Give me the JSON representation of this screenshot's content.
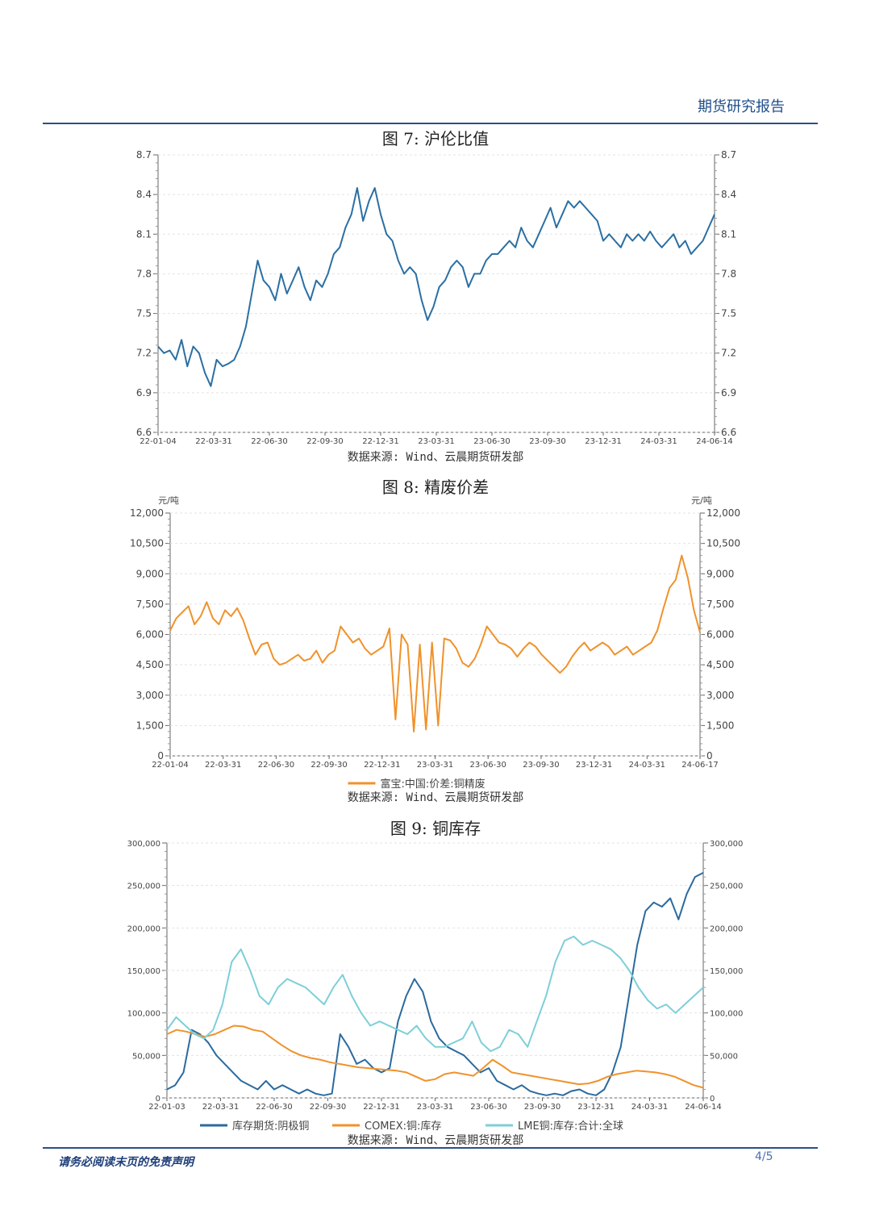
{
  "header": {
    "title": "期货研究报告"
  },
  "footer": {
    "disclaimer": "请务必阅读末页的免责声明",
    "page": "4/5"
  },
  "colors": {
    "blue": "#2a6fa3",
    "orange": "#f0922b",
    "cyan": "#7dcfd7",
    "dark_blue": "#2b6a9e",
    "rule": "#2b4f86"
  },
  "figures": [
    {
      "title": "图 7: 沪伦比值",
      "source": "数据来源: Wind、云晨期货研发部"
    },
    {
      "title": "图 8: 精废价差",
      "source": "数据来源: Wind、云晨期货研发部"
    },
    {
      "title": "图 9: 铜库存",
      "source": "数据来源: Wind、云晨期货研发部"
    }
  ],
  "chart_data": [
    {
      "type": "line",
      "title": "图 7: 沪伦比值",
      "x_ticks": [
        "22-01-04",
        "22-03-31",
        "22-06-30",
        "22-09-30",
        "22-12-31",
        "23-03-31",
        "23-06-30",
        "23-09-30",
        "23-12-31",
        "24-03-31",
        "24-06-14"
      ],
      "y_ticks": [
        "6.6",
        "6.9",
        "7.2",
        "7.5",
        "7.8",
        "8.1",
        "8.4",
        "8.7"
      ],
      "ylim": [
        6.6,
        8.7
      ],
      "grid": true,
      "series": [
        {
          "color": "#2a6fa3",
          "values": [
            7.25,
            7.2,
            7.22,
            7.15,
            7.3,
            7.1,
            7.25,
            7.2,
            7.05,
            6.95,
            7.15,
            7.1,
            7.12,
            7.15,
            7.25,
            7.4,
            7.65,
            7.9,
            7.75,
            7.7,
            7.6,
            7.8,
            7.65,
            7.75,
            7.85,
            7.7,
            7.6,
            7.75,
            7.7,
            7.8,
            7.95,
            8.0,
            8.15,
            8.25,
            8.45,
            8.2,
            8.35,
            8.45,
            8.25,
            8.1,
            8.05,
            7.9,
            7.8,
            7.85,
            7.8,
            7.6,
            7.45,
            7.55,
            7.7,
            7.75,
            7.85,
            7.9,
            7.85,
            7.7,
            7.8,
            7.8,
            7.9,
            7.95,
            7.95,
            8.0,
            8.05,
            8.0,
            8.15,
            8.05,
            8.0,
            8.1,
            8.2,
            8.3,
            8.15,
            8.25,
            8.35,
            8.3,
            8.35,
            8.3,
            8.25,
            8.2,
            8.05,
            8.1,
            8.05,
            8.0,
            8.1,
            8.05,
            8.1,
            8.05,
            8.12,
            8.05,
            8.0,
            8.05,
            8.1,
            8.0,
            8.05,
            7.95,
            8.0,
            8.05,
            8.15,
            8.25
          ]
        }
      ]
    },
    {
      "type": "line",
      "title": "图 8: 精废价差",
      "ylabel": "元/吨",
      "x_ticks": [
        "22-01-04",
        "22-03-31",
        "22-06-30",
        "22-09-30",
        "22-12-31",
        "23-03-31",
        "23-06-30",
        "23-09-30",
        "23-12-31",
        "24-03-31",
        "24-06-17"
      ],
      "y_ticks": [
        "0",
        "1,500",
        "3,000",
        "4,500",
        "6,000",
        "7,500",
        "9,000",
        "10,500",
        "12,000"
      ],
      "ylim": [
        0,
        12000
      ],
      "grid": true,
      "legend": "bottom",
      "series": [
        {
          "name": "富宝:中国:价差:铜精废",
          "color": "#f0922b",
          "values": [
            6200,
            6800,
            7100,
            7400,
            6500,
            6900,
            7600,
            6800,
            6500,
            7200,
            6900,
            7300,
            6700,
            5800,
            5000,
            5500,
            5600,
            4800,
            4500,
            4600,
            4800,
            5000,
            4700,
            4800,
            5200,
            4600,
            5000,
            5200,
            6400,
            6000,
            5600,
            5800,
            5300,
            5000,
            5200,
            5400,
            6300,
            1800,
            6000,
            5500,
            1200,
            5500,
            1300,
            5600,
            1500,
            5800,
            5700,
            5300,
            4600,
            4400,
            4800,
            5500,
            6400,
            6000,
            5600,
            5500,
            5300,
            4900,
            5300,
            5600,
            5400,
            5000,
            4700,
            4400,
            4100,
            4400,
            4900,
            5300,
            5600,
            5200,
            5400,
            5600,
            5400,
            5000,
            5200,
            5400,
            5000,
            5200,
            5400,
            5600,
            6200,
            7300,
            8300,
            8700,
            9900,
            8800,
            7200,
            6100
          ]
        }
      ]
    },
    {
      "type": "line",
      "title": "图 9: 铜库存",
      "x_ticks": [
        "22-01-03",
        "22-03-31",
        "22-06-30",
        "22-09-30",
        "22-12-31",
        "23-03-31",
        "23-06-30",
        "23-09-30",
        "23-12-31",
        "24-03-31",
        "24-06-14"
      ],
      "y_ticks": [
        "0",
        "50,000",
        "100,000",
        "150,000",
        "200,000",
        "250,000",
        "300,000"
      ],
      "ylim": [
        0,
        300000
      ],
      "grid": true,
      "legend": "bottom",
      "series": [
        {
          "name": "库存期货:阴极铜",
          "color": "#2b6a9e",
          "values": [
            10000,
            15000,
            30000,
            80000,
            75000,
            65000,
            50000,
            40000,
            30000,
            20000,
            15000,
            10000,
            20000,
            10000,
            15000,
            10000,
            5000,
            10000,
            5000,
            3000,
            5000,
            75000,
            60000,
            40000,
            45000,
            35000,
            30000,
            35000,
            90000,
            120000,
            140000,
            125000,
            90000,
            70000,
            60000,
            55000,
            50000,
            40000,
            30000,
            35000,
            20000,
            15000,
            10000,
            15000,
            8000,
            5000,
            3000,
            5000,
            3000,
            8000,
            10000,
            5000,
            3000,
            10000,
            30000,
            60000,
            120000,
            180000,
            220000,
            230000,
            225000,
            235000,
            210000,
            240000,
            260000,
            265000
          ]
        },
        {
          "name": "COMEX:铜:库存",
          "color": "#f0922b",
          "values": [
            75000,
            80000,
            78000,
            75000,
            72000,
            75000,
            80000,
            85000,
            84000,
            80000,
            78000,
            70000,
            62000,
            55000,
            50000,
            47000,
            45000,
            42000,
            40000,
            38000,
            36000,
            35000,
            34000,
            33000,
            32000,
            30000,
            25000,
            20000,
            22000,
            28000,
            30000,
            28000,
            26000,
            35000,
            45000,
            38000,
            30000,
            28000,
            26000,
            24000,
            22000,
            20000,
            18000,
            16000,
            17000,
            20000,
            25000,
            28000,
            30000,
            32000,
            31000,
            30000,
            28000,
            25000,
            20000,
            15000,
            12000
          ]
        },
        {
          "name": "LME铜:库存:合计:全球",
          "color": "#7dcfd7",
          "values": [
            80000,
            95000,
            85000,
            75000,
            70000,
            80000,
            110000,
            160000,
            175000,
            150000,
            120000,
            110000,
            130000,
            140000,
            135000,
            130000,
            120000,
            110000,
            130000,
            145000,
            120000,
            100000,
            85000,
            90000,
            85000,
            80000,
            75000,
            85000,
            70000,
            60000,
            60000,
            65000,
            70000,
            90000,
            65000,
            55000,
            60000,
            80000,
            75000,
            60000,
            90000,
            120000,
            160000,
            185000,
            190000,
            180000,
            185000,
            180000,
            175000,
            165000,
            150000,
            130000,
            115000,
            105000,
            110000,
            100000,
            110000,
            120000,
            130000
          ]
        }
      ]
    }
  ]
}
